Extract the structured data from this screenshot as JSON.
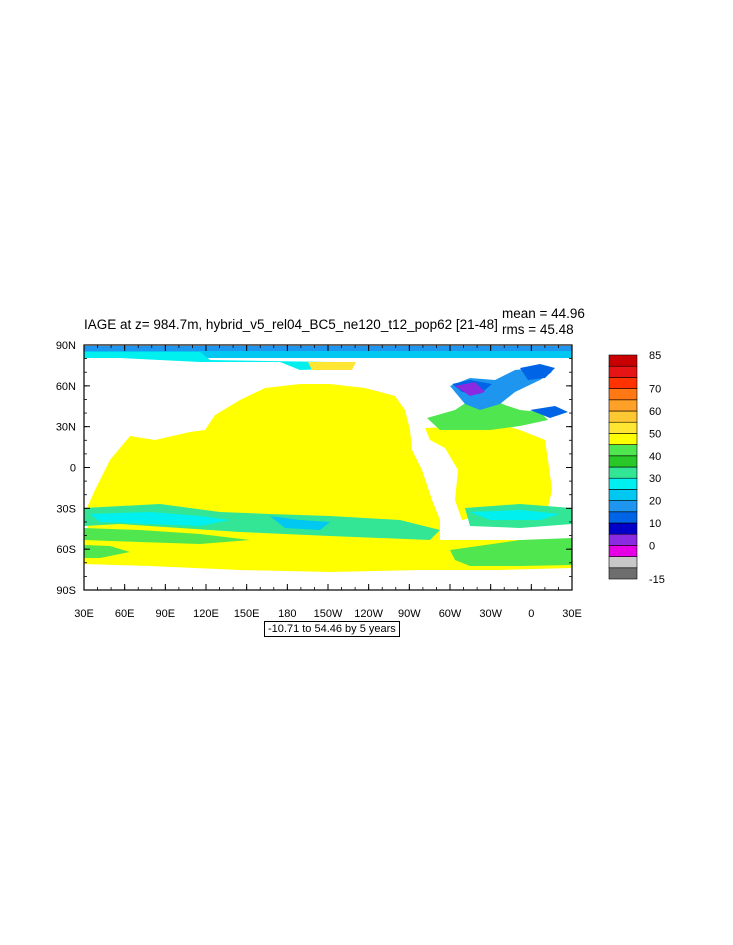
{
  "title": "IAGE at z= 984.7m, hybrid_v5_rel04_BC5_ne120_t12_pop62 [21-48]",
  "stats": {
    "mean": "mean = 44.96",
    "rms": "rms = 45.48"
  },
  "lat_ticks": [
    "90N",
    "60N",
    "30N",
    "0",
    "30S",
    "60S",
    "90S"
  ],
  "lon_ticks": [
    "30E",
    "60E",
    "90E",
    "120E",
    "150E",
    "180",
    "150W",
    "120W",
    "90W",
    "60W",
    "30W",
    "0",
    "30E"
  ],
  "contour_info": "-10.71 to 54.46 by 5 years",
  "colorbar": {
    "colors": [
      "#6e6e6e",
      "#c8c8c8",
      "#e600e6",
      "#8a2be2",
      "#0000c8",
      "#0064e6",
      "#1e96f0",
      "#00c8f0",
      "#00f0f0",
      "#32e696",
      "#28c828",
      "#50e650",
      "#ffff00",
      "#ffe632",
      "#ffc832",
      "#ffa028",
      "#ff7814",
      "#ff3200",
      "#e61414",
      "#c80000"
    ],
    "labels": [
      {
        "text": "85",
        "level": 20
      },
      {
        "text": "70",
        "level": 17
      },
      {
        "text": "60",
        "level": 15
      },
      {
        "text": "50",
        "level": 13
      },
      {
        "text": "40",
        "level": 11
      },
      {
        "text": "30",
        "level": 9
      },
      {
        "text": "20",
        "level": 7
      },
      {
        "text": "10",
        "level": 5
      },
      {
        "text": "0",
        "level": 3
      },
      {
        "text": "-15",
        "level": 0
      }
    ]
  },
  "map_colors": {
    "yellow": "#ffff00",
    "light_green": "#50e650",
    "green": "#32e696",
    "cyan": "#00f0f0",
    "sky": "#00c8f0",
    "light_blue": "#1e96f0",
    "blue": "#0064e6",
    "dark_blue": "#0000c8",
    "purple": "#8a2be2",
    "gold": "#ffe632"
  }
}
